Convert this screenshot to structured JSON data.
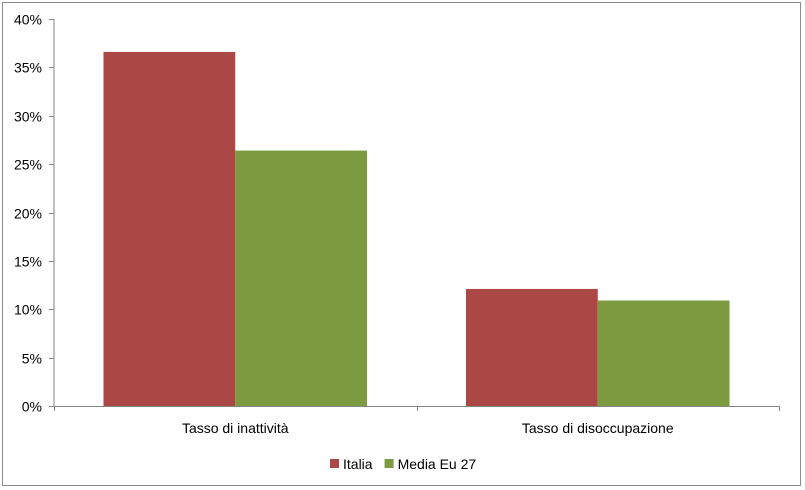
{
  "chart_data": {
    "type": "bar",
    "categories": [
      "Tasso di inattività",
      "Tasso di disoccupazione"
    ],
    "series": [
      {
        "name": "Italia",
        "values": [
          36.6,
          12.1
        ],
        "color": "#AB4744"
      },
      {
        "name": "Media Eu 27",
        "values": [
          26.4,
          10.9
        ],
        "color": "#7C9A3F"
      }
    ],
    "ylim": [
      0,
      40
    ],
    "yticks": [
      0,
      5,
      10,
      15,
      20,
      25,
      30,
      35,
      40
    ],
    "ytick_labels": [
      "0%",
      "5%",
      "10%",
      "15%",
      "20%",
      "25%",
      "30%",
      "35%",
      "40%"
    ],
    "legend": "bottom",
    "grid": false
  }
}
